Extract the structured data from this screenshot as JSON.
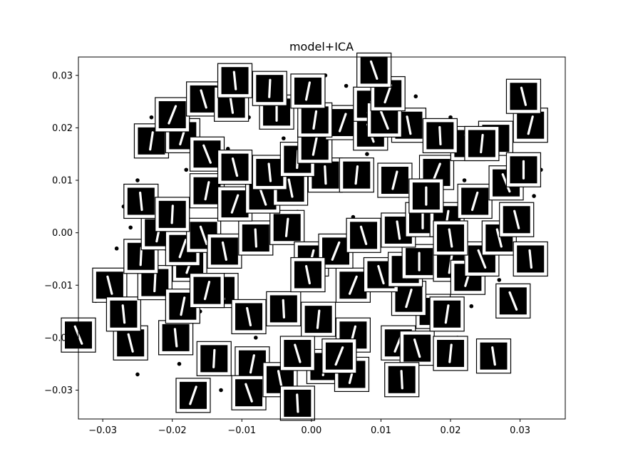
{
  "chart_data": {
    "type": "scatter",
    "title": "model+ICA",
    "xlabel": "",
    "ylabel": "",
    "xlim": [
      -0.0335,
      0.0365
    ],
    "ylim": [
      -0.0355,
      0.0335
    ],
    "x_ticks": [
      -0.03,
      -0.02,
      -0.01,
      0.0,
      0.01,
      0.02,
      0.03
    ],
    "x_tick_labels": [
      "−0.03",
      "−0.02",
      "−0.01",
      "0.00",
      "0.01",
      "0.02",
      "0.03"
    ],
    "y_ticks": [
      0.03,
      0.02,
      0.01,
      0.0,
      -0.01,
      -0.02,
      -0.03
    ],
    "y_tick_labels": [
      "0.03",
      "0.02",
      "0.01",
      "0.00",
      "−0.01",
      "−0.02",
      "−0.03"
    ],
    "grid": false,
    "marker_color": "#000000",
    "thumbnail_style": {
      "frame": "#ffffff",
      "border": "#000000",
      "background": "#000000",
      "digit": "#ffffff",
      "digit_class": "1"
    },
    "series": [
      {
        "values": [
          [
            -0.03,
            -0.012
          ],
          [
            -0.031,
            -0.013
          ],
          [
            -0.029,
            -0.018
          ],
          [
            -0.028,
            -0.022
          ],
          [
            -0.027,
            0.005
          ],
          [
            -0.026,
            0.001
          ],
          [
            -0.026,
            -0.005
          ],
          [
            -0.025,
            0.01
          ],
          [
            -0.024,
            0.015
          ],
          [
            -0.023,
            -0.008
          ],
          [
            -0.022,
            0.02
          ],
          [
            -0.021,
            -0.003
          ],
          [
            -0.02,
            0.024
          ],
          [
            -0.019,
            -0.025
          ],
          [
            -0.018,
            0.012
          ],
          [
            -0.017,
            0.021
          ],
          [
            -0.016,
            -0.015
          ],
          [
            -0.015,
            0.006
          ],
          [
            -0.014,
            0.025
          ],
          [
            -0.013,
            -0.03
          ],
          [
            -0.012,
            0.016
          ],
          [
            -0.011,
            -0.006
          ],
          [
            -0.01,
            0.013
          ],
          [
            -0.009,
            0.022
          ],
          [
            -0.008,
            -0.02
          ],
          [
            -0.007,
            0.008
          ],
          [
            -0.006,
            0.027
          ],
          [
            -0.005,
            -0.012
          ],
          [
            -0.004,
            0.018
          ],
          [
            -0.003,
            -0.028
          ],
          [
            -0.002,
            0.004
          ],
          [
            -0.001,
            0.024
          ],
          [
            0.0,
            -0.017
          ],
          [
            0.001,
            0.011
          ],
          [
            0.002,
            -0.005
          ],
          [
            0.003,
            0.021
          ],
          [
            0.004,
            -0.023
          ],
          [
            0.005,
            0.028
          ],
          [
            0.006,
            0.003
          ],
          [
            0.007,
            -0.027
          ],
          [
            0.008,
            0.015
          ],
          [
            0.009,
            -0.01
          ],
          [
            0.01,
            0.024
          ],
          [
            0.011,
            -0.021
          ],
          [
            0.012,
            0.008
          ],
          [
            0.013,
            -0.014
          ],
          [
            0.014,
            0.019
          ],
          [
            0.015,
            -0.003
          ],
          [
            0.016,
            -0.024
          ],
          [
            0.017,
            0.013
          ],
          [
            0.018,
            0.001
          ],
          [
            0.019,
            -0.018
          ],
          [
            0.02,
            0.022
          ],
          [
            0.021,
            -0.008
          ],
          [
            0.022,
            0.01
          ],
          [
            0.023,
            -0.014
          ],
          [
            0.024,
            0.004
          ],
          [
            0.025,
            -0.005
          ],
          [
            0.026,
            0.016
          ],
          [
            0.027,
            -0.009
          ],
          [
            0.028,
            0.001
          ],
          [
            0.029,
            0.011
          ],
          [
            0.03,
            -0.006
          ],
          [
            0.031,
            0.019
          ],
          [
            0.032,
            0.007
          ],
          [
            0.033,
            0.012
          ],
          [
            -0.025,
            -0.027
          ],
          [
            -0.023,
            0.022
          ],
          [
            -0.017,
            -0.029
          ],
          [
            -0.011,
            0.026
          ],
          [
            -0.005,
            0.03
          ],
          [
            0.002,
            0.03
          ],
          [
            0.008,
            0.029
          ],
          [
            0.015,
            0.026
          ],
          [
            0.021,
            -0.02
          ],
          [
            0.005,
            -0.029
          ],
          [
            -0.008,
            -0.031
          ],
          [
            0.013,
            -0.026
          ],
          [
            -0.028,
            -0.003
          ],
          [
            0.027,
            -0.015
          ]
        ]
      }
    ],
    "thumbnails": [
      [
        -0.0335,
        -0.0195
      ],
      [
        -0.026,
        -0.021
      ],
      [
        -0.0195,
        -0.02
      ],
      [
        -0.014,
        -0.024
      ],
      [
        -0.0085,
        -0.025
      ],
      [
        -0.017,
        -0.031
      ],
      [
        -0.009,
        -0.0305
      ],
      [
        -0.0045,
        -0.028
      ],
      [
        -0.002,
        -0.0325
      ],
      [
        0.0018,
        -0.0255
      ],
      [
        0.0058,
        -0.027
      ],
      [
        0.0125,
        -0.021
      ],
      [
        0.0152,
        -0.022
      ],
      [
        0.0262,
        -0.0235
      ],
      [
        0.0175,
        -0.015
      ],
      [
        0.0195,
        -0.0155
      ],
      [
        0.014,
        -0.0125
      ],
      [
        0.029,
        -0.013
      ],
      [
        -0.029,
        -0.01
      ],
      [
        -0.027,
        -0.0155
      ],
      [
        -0.0225,
        -0.0095
      ],
      [
        -0.0185,
        -0.014
      ],
      [
        -0.0175,
        -0.006
      ],
      [
        -0.013,
        -0.011
      ],
      [
        -0.009,
        -0.016
      ],
      [
        -0.004,
        -0.0145
      ],
      [
        0.001,
        -0.0165
      ],
      [
        0.006,
        -0.0195
      ],
      [
        0.006,
        -0.01
      ],
      [
        0.01,
        -0.008
      ],
      [
        0.0135,
        -0.007
      ],
      [
        0.0155,
        -0.0055
      ],
      [
        0.02,
        -0.006
      ],
      [
        0.0225,
        -0.0085
      ],
      [
        0.0245,
        -0.005
      ],
      [
        0.027,
        -0.001
      ],
      [
        0.0315,
        -0.005
      ],
      [
        -0.0245,
        -0.0045
      ],
      [
        -0.022,
        0.0
      ],
      [
        -0.0185,
        -0.003
      ],
      [
        -0.0155,
        -0.0005
      ],
      [
        -0.0125,
        -0.0035
      ],
      [
        -0.008,
        -0.001
      ],
      [
        -0.0035,
        0.001
      ],
      [
        0.0,
        -0.005
      ],
      [
        0.0035,
        -0.0035
      ],
      [
        0.0075,
        -0.0005
      ],
      [
        0.0125,
        0.0005
      ],
      [
        0.016,
        0.0025
      ],
      [
        0.0195,
        0.0025
      ],
      [
        0.0235,
        0.006
      ],
      [
        0.028,
        0.0095
      ],
      [
        0.0295,
        0.0025
      ],
      [
        -0.0245,
        0.006
      ],
      [
        -0.02,
        0.0035
      ],
      [
        -0.015,
        0.008
      ],
      [
        -0.011,
        0.0055
      ],
      [
        -0.007,
        0.007
      ],
      [
        -0.003,
        0.0085
      ],
      [
        0.002,
        0.011
      ],
      [
        0.0065,
        0.011
      ],
      [
        0.012,
        0.01
      ],
      [
        0.018,
        0.0115
      ],
      [
        0.0225,
        0.017
      ],
      [
        0.0265,
        0.018
      ],
      [
        0.0305,
        0.012
      ],
      [
        -0.023,
        0.0175
      ],
      [
        -0.0185,
        0.0185
      ],
      [
        -0.015,
        0.015
      ],
      [
        -0.011,
        0.0125
      ],
      [
        -0.006,
        0.0115
      ],
      [
        -0.002,
        0.014
      ],
      [
        0.0005,
        0.0165
      ],
      [
        0.0045,
        0.021
      ],
      [
        0.0085,
        0.019
      ],
      [
        0.014,
        0.0205
      ],
      [
        0.0185,
        0.0185
      ],
      [
        0.0245,
        0.017
      ],
      [
        0.0315,
        0.0205
      ],
      [
        -0.02,
        0.0225
      ],
      [
        -0.0155,
        0.0255
      ],
      [
        -0.0115,
        0.0245
      ],
      [
        -0.005,
        0.023
      ],
      [
        0.0005,
        0.0215
      ],
      [
        0.0085,
        0.0245
      ],
      [
        0.0105,
        0.0215
      ],
      [
        0.0305,
        0.026
      ],
      [
        -0.011,
        0.029
      ],
      [
        -0.006,
        0.0275
      ],
      [
        -0.0005,
        0.027
      ],
      [
        0.011,
        0.0265
      ],
      [
        0.009,
        0.031
      ],
      [
        -0.0005,
        -0.008
      ],
      [
        0.013,
        -0.028
      ],
      [
        0.02,
        -0.023
      ],
      [
        -0.015,
        -0.011
      ],
      [
        0.004,
        -0.0235
      ],
      [
        -0.002,
        -0.023
      ],
      [
        0.02,
        -0.001
      ],
      [
        0.0165,
        0.007
      ]
    ]
  }
}
